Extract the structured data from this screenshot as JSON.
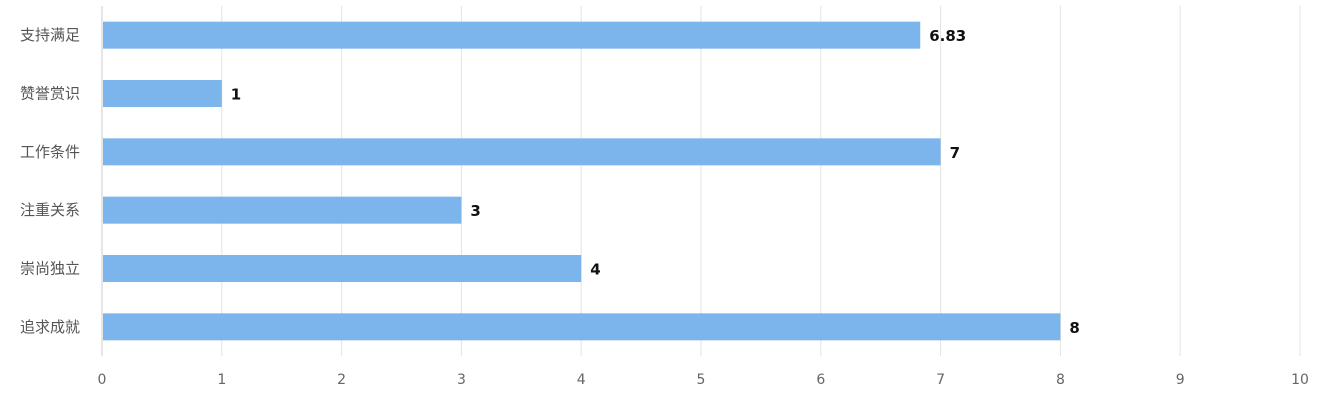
{
  "chart_data": {
    "type": "bar",
    "orientation": "horizontal",
    "categories": [
      "支持满足",
      "赞誉赏识",
      "工作条件",
      "注重关系",
      "崇尚独立",
      "追求成就"
    ],
    "values": [
      6.83,
      1,
      7,
      3,
      4,
      8
    ],
    "value_labels": [
      "6.83",
      "1",
      "7",
      "3",
      "4",
      "8"
    ],
    "xlim": [
      0,
      10
    ],
    "x_ticks": [
      "0",
      "1",
      "2",
      "3",
      "4",
      "5",
      "6",
      "7",
      "8",
      "9",
      "10"
    ],
    "title": "",
    "xlabel": "",
    "ylabel": "",
    "grid": "vertical",
    "legend": "none",
    "bar_color": "#7cb4ec"
  }
}
